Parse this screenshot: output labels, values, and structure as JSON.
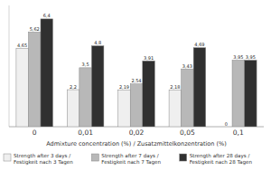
{
  "chart_data": {
    "type": "bar",
    "x_label": "Admixture concentration (%) / Zusatzmittelkonzentration (%)",
    "categories": [
      "0",
      "0,01",
      "0,02",
      "0,05",
      "0,1"
    ],
    "series": [
      {
        "name": "Strength after 3 days /\nFestigkeit nach 3 Tagen",
        "color": "#efefef",
        "values": [
          4.65,
          2.2,
          2.19,
          2.18,
          0
        ],
        "value_labels": [
          "4,65",
          "2,2",
          "2,19",
          "2,18",
          "0"
        ]
      },
      {
        "name": "Strength after 7 days /\nFestigkeit nach 7 Tagen",
        "color": "#b8b8b8",
        "values": [
          5.62,
          3.5,
          2.54,
          3.43,
          3.95
        ],
        "value_labels": [
          "5,62",
          "3,5",
          "2,54",
          "3,43",
          "3,95"
        ]
      },
      {
        "name": "Strength after 28 days /\nFestigkeit nach 28 Tagen",
        "color": "#303030",
        "values": [
          6.4,
          4.8,
          3.91,
          4.69,
          3.95
        ],
        "value_labels": [
          "6,4",
          "4,8",
          "3,91",
          "4,69",
          "3,95"
        ]
      }
    ],
    "ylim": [
      0,
      7.2
    ],
    "yticks": [],
    "tick_labels": "x",
    "data_labels": true,
    "legend": "bottom"
  }
}
